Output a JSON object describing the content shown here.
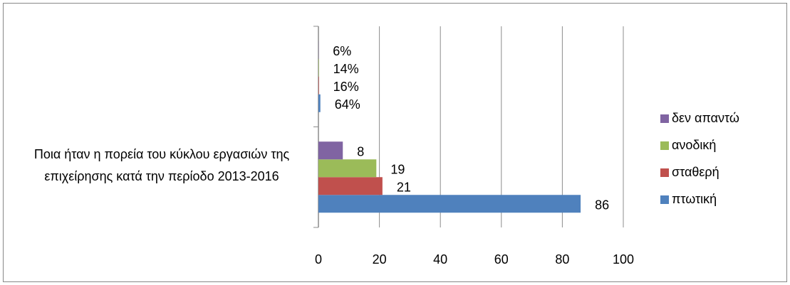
{
  "chart_data": {
    "type": "hbar",
    "categories": [
      "Ποια ήταν η πορεία του κύκλου εργασιών της επιχείρησης κατά την περίοδο 2013-2016",
      null
    ],
    "series": [
      {
        "name": "πτωτική",
        "color": "#4f81bd",
        "values": [
          86,
          0.64
        ],
        "value_labels": [
          "86",
          "64%"
        ]
      },
      {
        "name": "σταθερή",
        "color": "#c0504d",
        "values": [
          21,
          0.16
        ],
        "value_labels": [
          "21",
          "16%"
        ]
      },
      {
        "name": "ανοδική",
        "color": "#9bbb59",
        "values": [
          19,
          0.14
        ],
        "value_labels": [
          "19",
          "14%"
        ]
      },
      {
        "name": "δεν απαντώ",
        "color": "#8064a2",
        "values": [
          8,
          0.06
        ],
        "value_labels": [
          "8",
          "6%"
        ]
      }
    ],
    "xlim": [
      0,
      100
    ],
    "xticks": [
      0,
      20,
      40,
      60,
      80,
      100
    ],
    "grid": true,
    "legend": "right"
  }
}
